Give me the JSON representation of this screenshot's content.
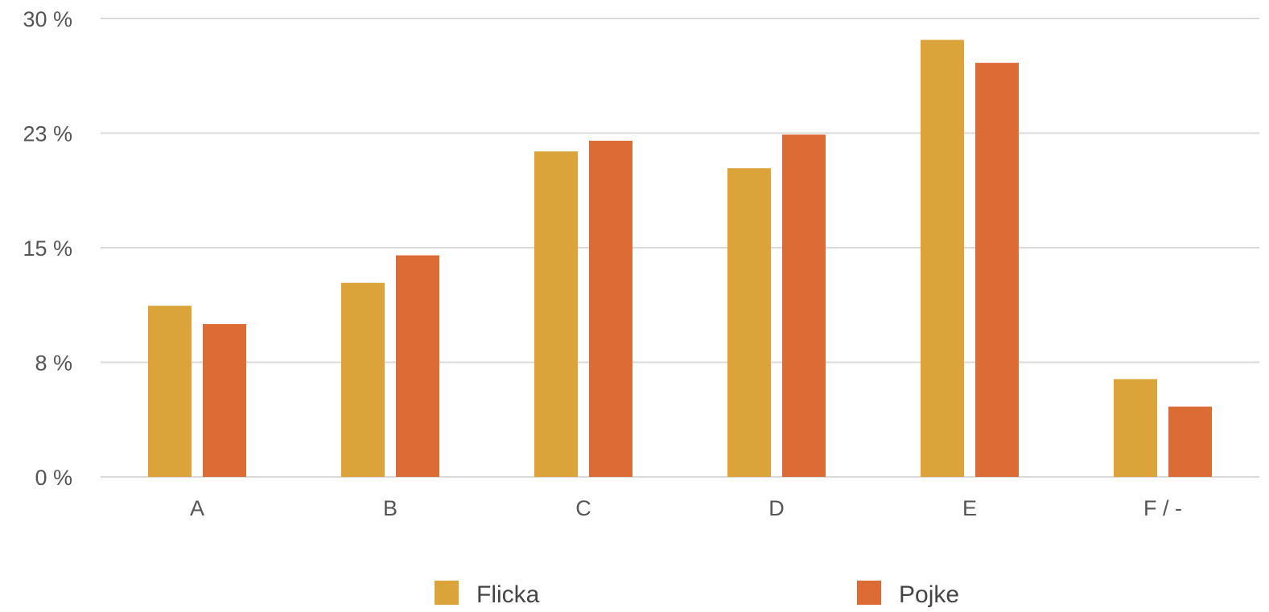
{
  "chart_data": {
    "type": "bar",
    "categories": [
      "A",
      "B",
      "C",
      "D",
      "E",
      "F / -"
    ],
    "series": [
      {
        "name": "Flicka",
        "color": "#DBA43A",
        "values": [
          11.2,
          12.7,
          21.3,
          20.2,
          28.6,
          6.4
        ]
      },
      {
        "name": "Pojke",
        "color": "#DD6B36",
        "values": [
          10.0,
          14.5,
          22.0,
          22.4,
          27.1,
          4.6
        ]
      }
    ],
    "y_ticks": [
      {
        "value": 0,
        "label": "0 %"
      },
      {
        "value": 7.5,
        "label": "8 %"
      },
      {
        "value": 15,
        "label": "15 %"
      },
      {
        "value": 22.5,
        "label": "23 %"
      },
      {
        "value": 30,
        "label": "30 %"
      }
    ],
    "ylim": [
      0,
      30
    ],
    "grid": true,
    "legend_position": "bottom"
  }
}
